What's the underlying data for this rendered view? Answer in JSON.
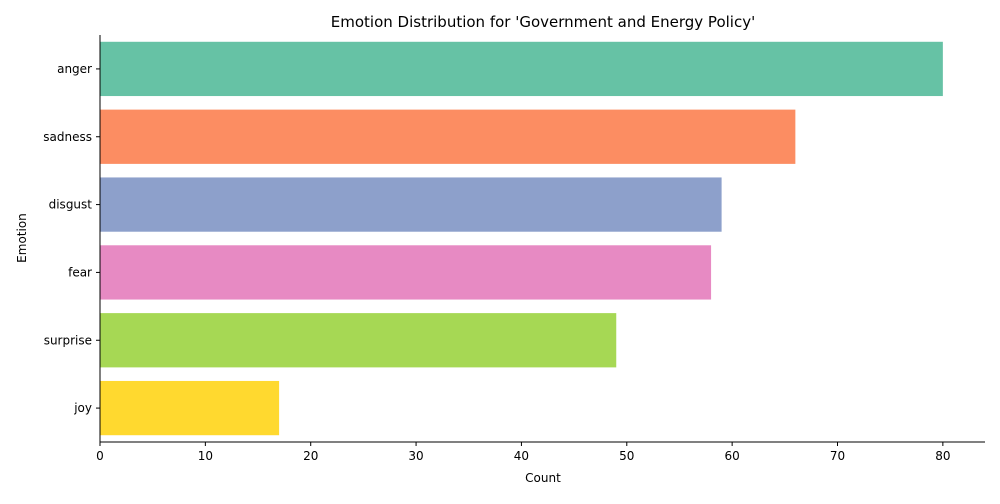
{
  "chart_data": {
    "type": "bar",
    "orientation": "horizontal",
    "title": "Emotion Distribution for 'Government and Energy Policy'",
    "xlabel": "Count",
    "ylabel": "Emotion",
    "categories": [
      "anger",
      "sadness",
      "disgust",
      "fear",
      "surprise",
      "joy"
    ],
    "values": [
      80,
      66,
      59,
      58,
      49,
      17
    ],
    "colors": [
      "#66c2a5",
      "#fc8d62",
      "#8da0cb",
      "#e78ac3",
      "#a6d854",
      "#ffd92f"
    ],
    "xlim": [
      0,
      84
    ],
    "xticks": [
      0,
      10,
      20,
      30,
      40,
      50,
      60,
      70,
      80
    ],
    "grid": false,
    "legend": false
  }
}
